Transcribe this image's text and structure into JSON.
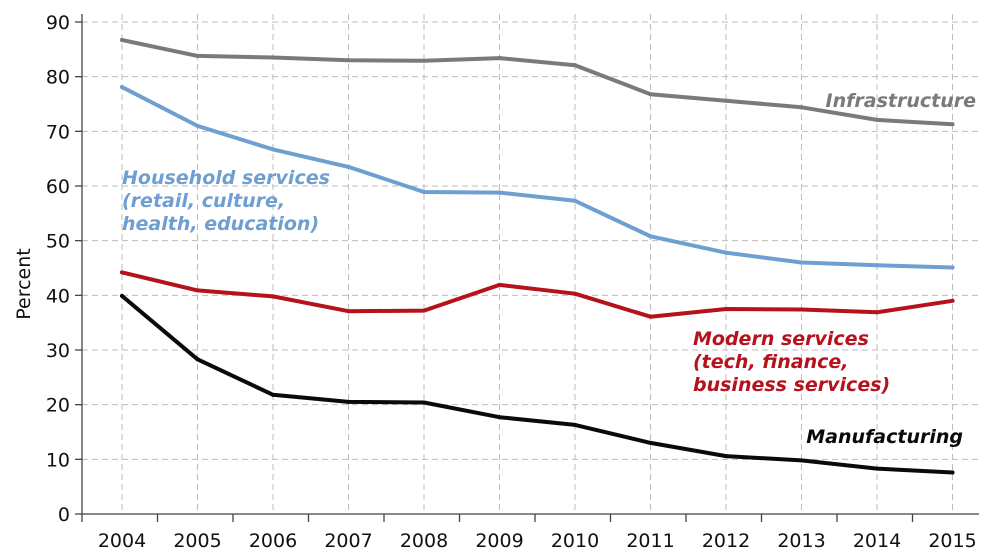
{
  "chart_data": {
    "type": "line",
    "title": "",
    "xlabel": "",
    "ylabel": "Percent",
    "ylim": [
      0,
      90
    ],
    "y_ticks": [
      "0",
      "10",
      "20",
      "30",
      "40",
      "50",
      "60",
      "70",
      "80",
      "90"
    ],
    "grid": true,
    "categories": [
      "2004",
      "2005",
      "2006",
      "2007",
      "2008",
      "2009",
      "2010",
      "2011",
      "2012",
      "2013",
      "2014",
      "2015"
    ],
    "series": [
      {
        "name": "Infrastructure",
        "label_lines": [
          "Infrastructure"
        ],
        "color": "#7a7a7a",
        "values": [
          86.7,
          83.8,
          83.5,
          83.0,
          82.9,
          83.4,
          82.1,
          76.8,
          75.6,
          74.4,
          72.1,
          71.3
        ]
      },
      {
        "name": "Household services (retail, culture, health, education)",
        "label_lines": [
          "Household services",
          "(retail, culture,",
          "health, education)"
        ],
        "color": "#6f9fd1",
        "values": [
          78.1,
          71.0,
          66.7,
          63.5,
          58.9,
          58.8,
          57.3,
          50.8,
          47.8,
          46.0,
          45.5,
          45.1
        ]
      },
      {
        "name": "Modern services (tech, finance, business services)",
        "label_lines": [
          "Modern services",
          "(tech, finance,",
          "business services)"
        ],
        "color": "#b5121b",
        "values": [
          44.2,
          40.9,
          39.8,
          37.1,
          37.2,
          41.9,
          40.3,
          36.1,
          37.5,
          37.4,
          36.9,
          39.0
        ]
      },
      {
        "name": "Manufacturing",
        "label_lines": [
          "Manufacturing"
        ],
        "color": "#0a0a0a",
        "values": [
          39.9,
          28.3,
          21.8,
          20.5,
          20.4,
          17.7,
          16.3,
          13.0,
          10.6,
          9.8,
          8.3,
          7.6
        ]
      }
    ]
  }
}
